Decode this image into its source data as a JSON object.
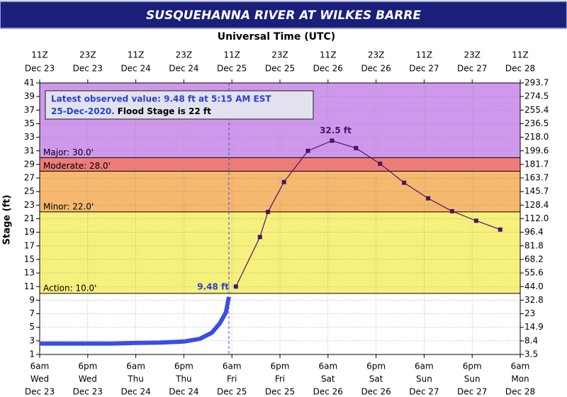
{
  "chart_data": {
    "type": "hydrograph",
    "title": "SUSQUEHANNA RIVER AT WILKES BARRE",
    "top_axis_title": "Universal Time (UTC)",
    "y_label": "Stage (ft)",
    "xlim": [
      0,
      120
    ],
    "xticks": [
      {
        "value": 0,
        "label": [
          "6am",
          "Wed",
          "Dec 23"
        ]
      },
      {
        "value": 12,
        "label": [
          "6pm",
          "Wed",
          "Dec 23"
        ]
      },
      {
        "value": 24,
        "label": [
          "6am",
          "Thu",
          "Dec 24"
        ]
      },
      {
        "value": 36,
        "label": [
          "6pm",
          "Thu",
          "Dec 24"
        ]
      },
      {
        "value": 48,
        "label": [
          "6am",
          "Fri",
          "Dec 25"
        ]
      },
      {
        "value": 60,
        "label": [
          "6pm",
          "Fri",
          "Dec 25"
        ]
      },
      {
        "value": 72,
        "label": [
          "6am",
          "Sat",
          "Dec 26"
        ]
      },
      {
        "value": 84,
        "label": [
          "6pm",
          "Sat",
          "Dec 26"
        ]
      },
      {
        "value": 96,
        "label": [
          "6am",
          "Sun",
          "Dec 27"
        ]
      },
      {
        "value": 108,
        "label": [
          "6pm",
          "Sun",
          "Dec 27"
        ]
      },
      {
        "value": 120,
        "label": [
          "6am",
          "Mon",
          "Dec 28"
        ]
      }
    ],
    "x2ticks": [
      {
        "value": 0,
        "label": [
          "11Z",
          "Dec 23"
        ]
      },
      {
        "value": 12,
        "label": [
          "23Z",
          "Dec 23"
        ]
      },
      {
        "value": 24,
        "label": [
          "11Z",
          "Dec 24"
        ]
      },
      {
        "value": 36,
        "label": [
          "23Z",
          "Dec 24"
        ]
      },
      {
        "value": 48,
        "label": [
          "11Z",
          "Dec 25"
        ]
      },
      {
        "value": 60,
        "label": [
          "23Z",
          "Dec 25"
        ]
      },
      {
        "value": 72,
        "label": [
          "11Z",
          "Dec 26"
        ]
      },
      {
        "value": 84,
        "label": [
          "23Z",
          "Dec 26"
        ]
      },
      {
        "value": 96,
        "label": [
          "11Z",
          "Dec 27"
        ]
      },
      {
        "value": 108,
        "label": [
          "23Z",
          "Dec 27"
        ]
      },
      {
        "value": 120,
        "label": [
          "11Z",
          "Dec 28"
        ]
      }
    ],
    "ylim": [
      1,
      41
    ],
    "yticks": [
      1,
      3,
      5,
      7,
      9,
      11,
      13,
      15,
      17,
      19,
      21,
      23,
      25,
      27,
      29,
      31,
      33,
      35,
      37,
      39,
      41
    ],
    "y2ticks": [
      3.5,
      8.4,
      14.9,
      23,
      {
        "value": 32.8,
        "label": "32.8"
      },
      {
        "value": 44,
        "label": "44.0"
      },
      55.6,
      68.2,
      81.8,
      96.4,
      {
        "value": 112,
        "label": "112.0"
      },
      128.4,
      145.7,
      163.7,
      181.7,
      199.6,
      {
        "value": 218,
        "label": "218.0"
      },
      236.5,
      255.4,
      274.5,
      293.7
    ],
    "grid": true,
    "stages": [
      {
        "value": 10,
        "label": "Action: 10.0'",
        "color": "#f6f07c"
      },
      {
        "value": 22,
        "label": "Minor: 22.0'",
        "color": "#f6b86e"
      },
      {
        "value": 28,
        "label": "Moderate: 28.0'",
        "color": "#ee7c78"
      },
      {
        "value": 30,
        "label": "Major: 30.0'",
        "color": "#cf98ec"
      }
    ],
    "series": [
      {
        "color": "#3a4de6",
        "markers": false,
        "x": [
          0,
          6,
          12,
          18,
          24,
          30,
          36,
          40,
          43,
          45,
          46.5,
          47.25
        ],
        "values": [
          2.6,
          2.6,
          2.6,
          2.6,
          2.7,
          2.75,
          2.9,
          3.3,
          4.2,
          5.6,
          7.2,
          9.48
        ]
      },
      {
        "color": "#4a1466",
        "markers": true,
        "x": [
          49,
          55,
          57,
          61,
          67,
          73,
          79,
          85,
          91,
          97,
          103,
          109,
          115
        ],
        "values": [
          11,
          18.3,
          22,
          26.4,
          31,
          32.5,
          31.4,
          29.1,
          26.3,
          24,
          22.1,
          20.7,
          19.4
        ]
      }
    ],
    "latest_x": 47.25,
    "annotations": [
      {
        "text": "9.48 ft",
        "x": 47.25,
        "y": 9.48,
        "color": "#2b3fd6"
      },
      {
        "text": "32.5 ft",
        "x": 73,
        "y": 32.5,
        "color": "#4a1466"
      }
    ],
    "info_box": {
      "line1": "Latest observed value: 9.48 ft at 5:15 AM EST",
      "line2a": "25-Dec-2020.",
      "line2b": "Flood Stage is 22 ft"
    }
  }
}
